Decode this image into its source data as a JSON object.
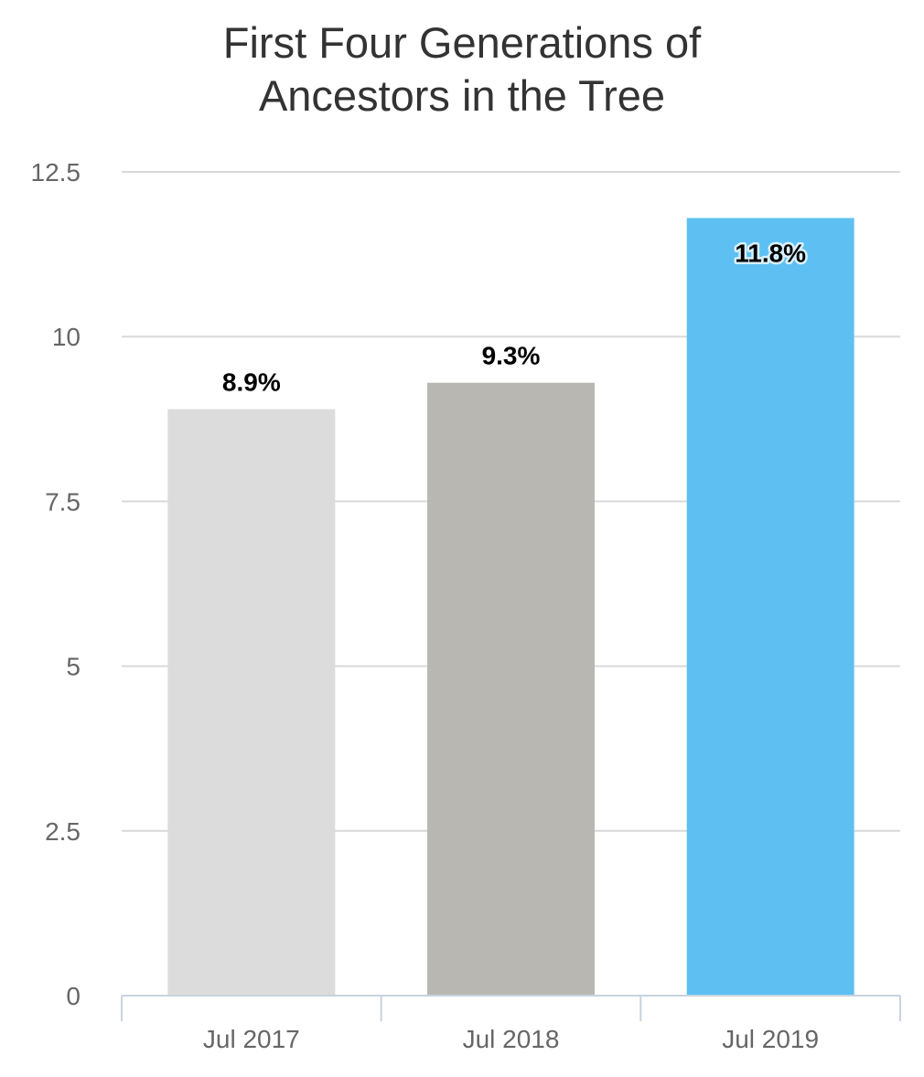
{
  "chart_data": {
    "type": "bar",
    "title_lines": [
      "First Four Generations of",
      "Ancestors in the Tree"
    ],
    "categories": [
      "Jul 2017",
      "Jul 2018",
      "Jul 2019"
    ],
    "values": [
      8.9,
      9.3,
      11.8
    ],
    "data_labels": [
      "8.9%",
      "9.3%",
      "11.8%"
    ],
    "bar_colors": [
      "#dcdcdc",
      "#b8b7b2",
      "#5ec0f2"
    ],
    "y_ticks": [
      0,
      2.5,
      5,
      7.5,
      10,
      12.5
    ],
    "y_tick_labels": [
      "0",
      "2.5",
      "5",
      "7.5",
      "10",
      "12.5"
    ],
    "ylim": [
      0,
      12.5
    ],
    "grid": true,
    "legend": false,
    "xlabel": "",
    "ylabel": "",
    "colors": {
      "grid": "#d9d9d9",
      "axis": "#c7d3e0",
      "tick_text": "#666666",
      "title_text": "#333333"
    }
  }
}
